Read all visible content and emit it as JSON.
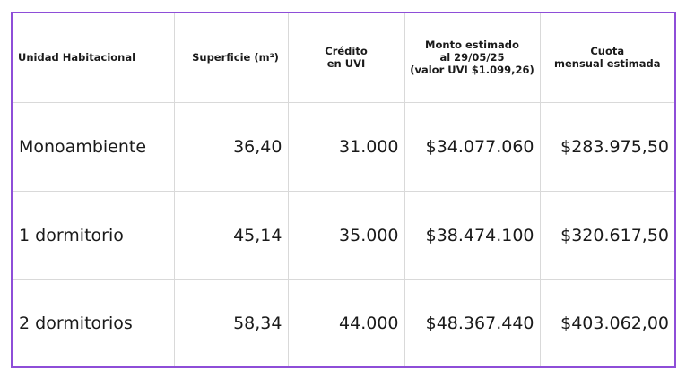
{
  "table": {
    "headers": [
      "Unidad Habitacional",
      "Superficie (m²)",
      "Crédito\nen UVI",
      "Monto estimado\nal 29/05/25\n(valor UVI $1.099,26)",
      "Cuota\nmensual estimada"
    ],
    "rows": [
      [
        "Monoambiente",
        "36,40",
        "31.000",
        "$34.077.060",
        "$283.975,50"
      ],
      [
        "1 dormitorio",
        "45,14",
        "35.000",
        "$38.474.100",
        "$320.617,50"
      ],
      [
        "2 dormitorios",
        "58,34",
        "44.000",
        "$48.367.440",
        "$403.062,00"
      ]
    ]
  },
  "colors": {
    "border_accent": "#8e4ed8",
    "grid_lines": "#d9d9d9",
    "text": "#1a1a1a"
  }
}
